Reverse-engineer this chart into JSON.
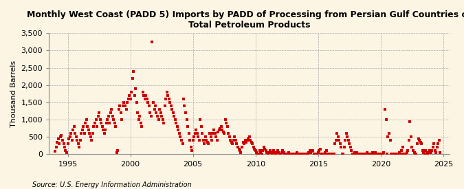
{
  "title": "Monthly West Coast (PADD 5) Imports by PADD of Processing from Persian Gulf Countries of\nTotal Petroleum Products",
  "ylabel": "Thousand Barrels",
  "source": "Source: U.S. Energy Information Administration",
  "bg_color": "#fdf5e4",
  "marker_color": "#cc0000",
  "grid_color": "#aaaaaa",
  "xlim": [
    1993.5,
    2025.5
  ],
  "ylim": [
    0,
    3500
  ],
  "yticks": [
    0,
    500,
    1000,
    1500,
    2000,
    2500,
    3000,
    3500
  ],
  "xticks": [
    1995,
    2000,
    2005,
    2010,
    2015,
    2020,
    2025
  ],
  "data": {
    "dates": [
      1994.0,
      1994.08,
      1994.17,
      1994.25,
      1994.33,
      1994.42,
      1994.5,
      1994.58,
      1994.67,
      1994.75,
      1994.83,
      1994.92,
      1995.0,
      1995.08,
      1995.17,
      1995.25,
      1995.33,
      1995.42,
      1995.5,
      1995.58,
      1995.67,
      1995.75,
      1995.83,
      1995.92,
      1996.0,
      1996.08,
      1996.17,
      1996.25,
      1996.33,
      1996.42,
      1996.5,
      1996.58,
      1996.67,
      1996.75,
      1996.83,
      1996.92,
      1997.0,
      1997.08,
      1997.17,
      1997.25,
      1997.33,
      1997.42,
      1997.5,
      1997.58,
      1997.67,
      1997.75,
      1997.83,
      1997.92,
      1998.0,
      1998.08,
      1998.17,
      1998.25,
      1998.33,
      1998.42,
      1998.5,
      1998.58,
      1998.67,
      1998.75,
      1998.83,
      1998.92,
      1999.0,
      1999.08,
      1999.17,
      1999.25,
      1999.33,
      1999.42,
      1999.5,
      1999.58,
      1999.67,
      1999.75,
      1999.83,
      1999.92,
      2000.0,
      2000.08,
      2000.17,
      2000.25,
      2000.33,
      2000.42,
      2000.5,
      2000.58,
      2000.67,
      2000.75,
      2000.83,
      2000.92,
      2001.0,
      2001.08,
      2001.17,
      2001.25,
      2001.33,
      2001.42,
      2001.5,
      2001.58,
      2001.67,
      2001.75,
      2001.83,
      2001.92,
      2002.0,
      2002.08,
      2002.17,
      2002.25,
      2002.33,
      2002.42,
      2002.5,
      2002.58,
      2002.67,
      2002.75,
      2002.83,
      2002.92,
      2003.0,
      2003.08,
      2003.17,
      2003.25,
      2003.33,
      2003.42,
      2003.5,
      2003.58,
      2003.67,
      2003.75,
      2003.83,
      2003.92,
      2004.0,
      2004.08,
      2004.17,
      2004.25,
      2004.33,
      2004.42,
      2004.5,
      2004.58,
      2004.67,
      2004.75,
      2004.83,
      2004.92,
      2005.0,
      2005.08,
      2005.17,
      2005.25,
      2005.33,
      2005.42,
      2005.5,
      2005.58,
      2005.67,
      2005.75,
      2005.83,
      2005.92,
      2006.0,
      2006.08,
      2006.17,
      2006.25,
      2006.33,
      2006.42,
      2006.5,
      2006.58,
      2006.67,
      2006.75,
      2006.83,
      2006.92,
      2007.0,
      2007.08,
      2007.17,
      2007.25,
      2007.33,
      2007.42,
      2007.5,
      2007.58,
      2007.67,
      2007.75,
      2007.83,
      2007.92,
      2008.0,
      2008.08,
      2008.17,
      2008.25,
      2008.33,
      2008.42,
      2008.5,
      2008.58,
      2008.67,
      2008.75,
      2008.83,
      2008.92,
      2009.0,
      2009.08,
      2009.17,
      2009.25,
      2009.33,
      2009.42,
      2009.5,
      2009.58,
      2009.67,
      2009.75,
      2009.83,
      2009.92,
      2010.0,
      2010.08,
      2010.17,
      2010.25,
      2010.33,
      2010.42,
      2010.5,
      2010.58,
      2010.67,
      2010.75,
      2010.83,
      2010.92,
      2011.0,
      2011.08,
      2011.17,
      2011.25,
      2011.33,
      2011.42,
      2011.5,
      2011.58,
      2011.67,
      2011.75,
      2011.83,
      2011.92,
      2012.0,
      2012.08,
      2012.17,
      2012.25,
      2012.33,
      2012.42,
      2012.5,
      2012.58,
      2012.67,
      2012.75,
      2012.83,
      2012.92,
      2013.0,
      2013.08,
      2013.17,
      2013.25,
      2013.33,
      2013.42,
      2013.5,
      2013.58,
      2013.67,
      2013.75,
      2013.83,
      2013.92,
      2014.0,
      2014.08,
      2014.17,
      2014.25,
      2014.33,
      2014.42,
      2014.5,
      2014.58,
      2014.67,
      2014.75,
      2014.83,
      2014.92,
      2015.0,
      2015.08,
      2015.17,
      2015.25,
      2015.33,
      2015.42,
      2015.5,
      2015.58,
      2015.67,
      2015.75,
      2015.83,
      2015.92,
      2016.0,
      2016.08,
      2016.17,
      2016.25,
      2016.33,
      2016.42,
      2016.5,
      2016.58,
      2016.67,
      2016.75,
      2016.83,
      2016.92,
      2017.0,
      2017.08,
      2017.17,
      2017.25,
      2017.33,
      2017.42,
      2017.5,
      2017.58,
      2017.67,
      2017.75,
      2017.83,
      2017.92,
      2018.0,
      2018.08,
      2018.17,
      2018.25,
      2018.33,
      2018.42,
      2018.5,
      2018.58,
      2018.67,
      2018.75,
      2018.83,
      2018.92,
      2019.0,
      2019.08,
      2019.17,
      2019.25,
      2019.33,
      2019.42,
      2019.5,
      2019.58,
      2019.67,
      2019.75,
      2019.83,
      2019.92,
      2020.0,
      2020.08,
      2020.17,
      2020.25,
      2020.33,
      2020.42,
      2020.5,
      2020.58,
      2020.67,
      2020.75,
      2020.83,
      2020.92,
      2021.0,
      2021.08,
      2021.17,
      2021.25,
      2021.33,
      2021.42,
      2021.5,
      2021.58,
      2021.67,
      2021.75,
      2021.83,
      2021.92,
      2022.0,
      2022.08,
      2022.17,
      2022.25,
      2022.33,
      2022.42,
      2022.5,
      2022.58,
      2022.67,
      2022.75,
      2022.83,
      2022.92,
      2023.0,
      2023.08,
      2023.17,
      2023.25,
      2023.33,
      2023.42,
      2023.5,
      2023.58,
      2023.67,
      2023.75,
      2023.83,
      2023.92,
      2024.0,
      2024.08,
      2024.17,
      2024.25,
      2024.33,
      2024.42,
      2024.5,
      2024.58,
      2024.67,
      2024.75
    ],
    "values": [
      80,
      200,
      350,
      450,
      300,
      500,
      550,
      400,
      300,
      200,
      100,
      50,
      300,
      450,
      500,
      600,
      400,
      700,
      800,
      600,
      500,
      400,
      300,
      200,
      400,
      600,
      700,
      800,
      600,
      900,
      1000,
      800,
      700,
      600,
      500,
      400,
      600,
      800,
      900,
      1000,
      800,
      1100,
      1200,
      1000,
      900,
      800,
      700,
      600,
      700,
      900,
      1000,
      1100,
      900,
      1200,
      1300,
      1100,
      1000,
      900,
      800,
      50,
      100,
      1300,
      1400,
      1200,
      1000,
      1400,
      1500,
      1400,
      1300,
      1500,
      1600,
      1700,
      1600,
      1800,
      2200,
      2400,
      1700,
      1900,
      1500,
      1200,
      1000,
      1100,
      900,
      800,
      1800,
      1700,
      1600,
      1700,
      1600,
      1500,
      1400,
      1200,
      1100,
      3250,
      1500,
      1300,
      1400,
      1200,
      1100,
      1000,
      1300,
      1200,
      1100,
      1000,
      900,
      1400,
      1600,
      1800,
      1700,
      1600,
      1500,
      1400,
      1300,
      1200,
      1100,
      1000,
      900,
      800,
      700,
      600,
      500,
      400,
      300,
      1600,
      1400,
      1200,
      1000,
      800,
      600,
      400,
      200,
      100,
      400,
      500,
      600,
      700,
      600,
      500,
      400,
      1000,
      800,
      600,
      400,
      300,
      500,
      400,
      350,
      300,
      600,
      500,
      400,
      600,
      700,
      600,
      500,
      400,
      650,
      700,
      750,
      800,
      700,
      650,
      600,
      1000,
      900,
      800,
      600,
      500,
      400,
      350,
      300,
      400,
      500,
      400,
      300,
      200,
      150,
      100,
      50,
      200,
      350,
      300,
      400,
      350,
      400,
      450,
      500,
      400,
      350,
      300,
      200,
      150,
      100,
      50,
      0,
      0,
      100,
      50,
      0,
      100,
      200,
      150,
      100,
      50,
      0,
      50,
      100,
      50,
      0,
      100,
      50,
      0,
      50,
      100,
      50,
      0,
      0,
      50,
      100,
      50,
      0,
      0,
      0,
      0,
      50,
      0,
      0,
      0,
      0,
      0,
      0,
      0,
      50,
      0,
      0,
      0,
      0,
      0,
      0,
      0,
      0,
      0,
      0,
      50,
      100,
      50,
      80,
      100,
      0,
      0,
      0,
      0,
      50,
      100,
      150,
      0,
      0,
      0,
      0,
      50,
      100,
      0,
      0,
      0,
      0,
      0,
      0,
      0,
      300,
      400,
      600,
      500,
      400,
      300,
      200,
      0,
      0,
      200,
      400,
      600,
      500,
      400,
      300,
      200,
      100,
      0,
      0,
      50,
      0,
      50,
      0,
      0,
      0,
      0,
      0,
      0,
      0,
      0,
      0,
      50,
      0,
      0,
      0,
      0,
      50,
      0,
      0,
      50,
      0,
      0,
      0,
      0,
      0,
      0,
      0,
      50,
      1300,
      1000,
      0,
      500,
      600,
      400,
      0,
      0,
      0,
      0,
      0,
      0,
      0,
      0,
      50,
      0,
      100,
      200,
      0,
      0,
      0,
      50,
      100,
      400,
      950,
      500,
      200,
      100,
      50,
      0,
      0,
      300,
      450,
      400,
      350,
      300,
      100,
      50,
      0,
      100,
      50,
      0,
      50,
      100,
      50,
      100,
      200,
      300,
      100,
      50,
      200,
      300,
      400,
      50
    ]
  }
}
